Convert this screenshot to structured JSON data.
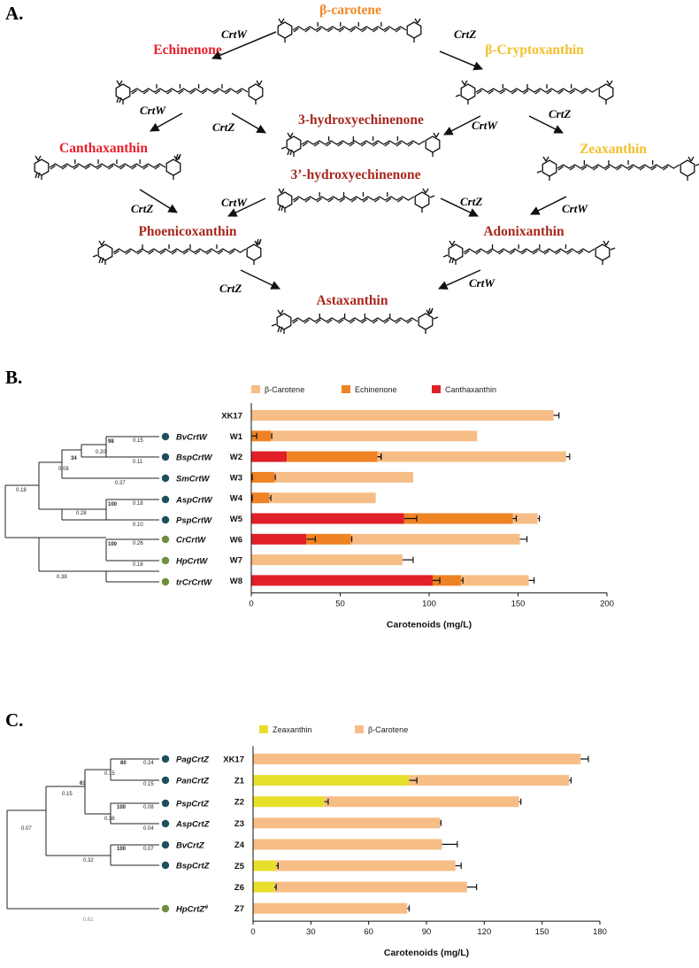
{
  "panelA": {
    "label": "A.",
    "colors": {
      "orange": "#f08a24",
      "red": "#e8202a",
      "yellow": "#f3bf2b",
      "darkred": "#a8281e"
    },
    "compounds": [
      {
        "id": "bcar",
        "name": "β-carotene",
        "color": "orange"
      },
      {
        "id": "ech",
        "name": "Echinenone",
        "color": "red"
      },
      {
        "id": "bcry",
        "name": "β-Cryptoxanthin",
        "color": "yellow"
      },
      {
        "id": "hech",
        "name": "3-hydroxyechinenone",
        "color": "darkred"
      },
      {
        "id": "can",
        "name": "Canthaxanthin",
        "color": "red"
      },
      {
        "id": "zea",
        "name": "Zeaxanthin",
        "color": "yellow"
      },
      {
        "id": "hech2",
        "name": "3’-hydroxyechinenone",
        "color": "darkred"
      },
      {
        "id": "pho",
        "name": "Phoenicoxanthin",
        "color": "darkred"
      },
      {
        "id": "ado",
        "name": "Adonixanthin",
        "color": "darkred"
      },
      {
        "id": "ast",
        "name": "Astaxanthin",
        "color": "darkred"
      }
    ],
    "enzymes": [
      {
        "id": "e1",
        "label": "CrtW"
      },
      {
        "id": "e2",
        "label": "CrtZ"
      },
      {
        "id": "e3",
        "label": "CrtW"
      },
      {
        "id": "e4",
        "label": "CrtZ"
      },
      {
        "id": "e5",
        "label": "CrtW"
      },
      {
        "id": "e6",
        "label": "CrtZ"
      },
      {
        "id": "e7",
        "label": "CrtZ"
      },
      {
        "id": "e8",
        "label": "CrtW"
      },
      {
        "id": "e9",
        "label": "CrtZ"
      },
      {
        "id": "e10",
        "label": "CrtW"
      },
      {
        "id": "e11",
        "label": "CrtZ"
      },
      {
        "id": "e12",
        "label": "CrtW"
      }
    ]
  },
  "panelB": {
    "label": "B.",
    "tree": {
      "leaves": [
        {
          "name": "BvCrtW",
          "dot": "#1f4e5f"
        },
        {
          "name": "BspCrtW",
          "dot": "#1f4e5f"
        },
        {
          "name": "SmCrtW",
          "dot": "#1f4e5f"
        },
        {
          "name": "AspCrtW",
          "dot": "#1f4e5f"
        },
        {
          "name": "PspCrtW",
          "dot": "#1f4e5f"
        },
        {
          "name": "CrCrtW",
          "dot": "#6e8f3c"
        },
        {
          "name": "HpCrtW",
          "dot": "#6e8f3c"
        },
        {
          "name": "trCrCrtW",
          "dot": "#6e8f3c"
        }
      ],
      "labels": [
        "98",
        "0.15",
        "0.20",
        "0.11",
        "34",
        "0.08",
        "0.37",
        "0.18",
        "100",
        "0.18",
        "0.28",
        "0.10",
        "100",
        "0.26",
        "0.38",
        "0.16"
      ]
    },
    "chart_data": {
      "type": "bar",
      "orientation": "horizontal",
      "stacked": true,
      "categories": [
        "XK17",
        "W1",
        "W2",
        "W3",
        "W4",
        "W5",
        "W6",
        "W7",
        "W8"
      ],
      "series": [
        {
          "name": "Canthaxanthin",
          "color": "#e01f26",
          "values": [
            0,
            0,
            20,
            0,
            0,
            86,
            31,
            0,
            102
          ]
        },
        {
          "name": "Echinenone",
          "color": "#ef8222",
          "values": [
            0,
            11,
            51,
            13,
            10,
            61,
            25,
            0,
            16
          ]
        },
        {
          "name": "β-Carotene",
          "color": "#f7bd86",
          "values": [
            170,
            116,
            106,
            78,
            60,
            14,
            95,
            85,
            38
          ]
        }
      ],
      "legend_order": [
        "β-Carotene",
        "Echinenone",
        "Canthaxanthin"
      ],
      "errors": [
        {
          "seg": 2,
          "err": 3
        },
        {
          "seg": 1,
          "err": 0.5
        },
        {
          "seg": 0,
          "err": 3
        },
        {
          "seg": 1,
          "err": 2
        },
        {
          "seg": 2,
          "err": 2
        },
        {
          "seg": 1,
          "err": 2
        },
        {
          "seg": 0,
          "err": 0.5
        },
        {
          "seg": 1,
          "err": 0.5
        },
        {
          "seg": 0,
          "err": 0.5
        },
        {
          "seg": 1,
          "err": 1
        },
        {
          "seg": 0,
          "err": 7
        },
        {
          "seg": 1,
          "err": 2
        },
        {
          "seg": 2,
          "err": 1
        },
        {
          "seg": 0,
          "err": 5
        },
        {
          "seg": 1,
          "err": 0.5
        },
        {
          "seg": 2,
          "err": 4
        },
        {
          "seg": 2,
          "err": 6
        },
        {
          "seg": 0,
          "err": 4
        },
        {
          "seg": 1,
          "err": 1
        },
        {
          "seg": 2,
          "err": 3
        }
      ],
      "error_rows": [
        0,
        1,
        1,
        2,
        2,
        2,
        3,
        3,
        4,
        4,
        5,
        5,
        5,
        6,
        6,
        6,
        7,
        8,
        8,
        8
      ],
      "xlim": [
        0,
        200
      ],
      "xticks": [
        "0",
        "50",
        "100",
        "150",
        "200"
      ],
      "xlabel": "Carotenoids (mg/L)"
    }
  },
  "panelC": {
    "label": "C.",
    "tree": {
      "leaves": [
        {
          "name": "PagCrtZ",
          "dot": "#1f4e5f"
        },
        {
          "name": "PanCrtZ",
          "dot": "#1f4e5f"
        },
        {
          "name": "PspCrtZ",
          "dot": "#1f4e5f"
        },
        {
          "name": "AspCrtZ",
          "dot": "#1f4e5f"
        },
        {
          "name": "BvCrtZ",
          "dot": "#1f4e5f"
        },
        {
          "name": "BspCrtZ",
          "dot": "#1f4e5f"
        },
        {
          "name": "HpCrtZ",
          "dot": "#6e8f3c",
          "sup": "#"
        }
      ],
      "labels": [
        "80",
        "0.24",
        "0.15",
        "0.15",
        "63",
        "0.15",
        "100",
        "0.08",
        "0.36",
        "0.04",
        "0.07",
        "100",
        "0.07",
        "0.32",
        "0.61"
      ]
    },
    "chart_data": {
      "type": "bar",
      "orientation": "horizontal",
      "stacked": true,
      "categories": [
        "XK17",
        "Z1",
        "Z2",
        "Z3",
        "Z4",
        "Z5",
        "Z6",
        "Z7"
      ],
      "series": [
        {
          "name": "Zeaxanthin",
          "color": "#e8df2c",
          "values": [
            0,
            81,
            37,
            0,
            0,
            12,
            11,
            0
          ]
        },
        {
          "name": "β-Carotene",
          "color": "#f7bd86",
          "values": [
            170,
            83,
            101,
            97,
            98,
            93,
            100,
            80
          ]
        }
      ],
      "legend_order": [
        "Zeaxanthin",
        "β-Carotene"
      ],
      "errors": [
        {
          "seg": 1,
          "err": 4
        },
        {
          "seg": 0,
          "err": 4
        },
        {
          "seg": 1,
          "err": 1
        },
        {
          "seg": 0,
          "err": 2
        },
        {
          "seg": 1,
          "err": 1
        },
        {
          "seg": 1,
          "err": 0.5
        },
        {
          "seg": 1,
          "err": 8
        },
        {
          "seg": 0,
          "err": 1
        },
        {
          "seg": 1,
          "err": 3
        },
        {
          "seg": 0,
          "err": 1
        },
        {
          "seg": 1,
          "err": 5
        },
        {
          "seg": 1,
          "err": 1
        }
      ],
      "error_rows": [
        0,
        1,
        1,
        2,
        2,
        3,
        4,
        5,
        5,
        6,
        6,
        7
      ],
      "xlim": [
        0,
        180
      ],
      "xticks": [
        "0",
        "30",
        "60",
        "90",
        "120",
        "150",
        "180"
      ],
      "xlabel": "Carotenoids (mg/L)"
    }
  }
}
